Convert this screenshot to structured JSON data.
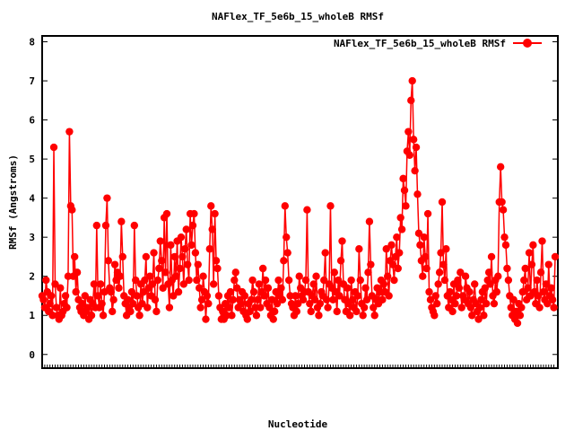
{
  "chart_data": {
    "type": "line",
    "title": "NAFlex_TF_5e6b_15_wholeB RMSf",
    "xlabel": "Nucleotide",
    "ylabel": "RMSf (Angstroms)",
    "ylim": [
      -0.35,
      8.15
    ],
    "yticks": [
      0,
      1,
      2,
      3,
      4,
      5,
      6,
      7,
      8
    ],
    "grid": false,
    "legend_position": "top-right",
    "series": [
      {
        "name": "NAFlex_TF_5e6b_15_wholeB RMSf",
        "color": "#ff0000",
        "values": [
          1.5,
          1.4,
          1.2,
          1.9,
          1.6,
          1.1,
          1.3,
          1.5,
          1.0,
          5.3,
          1.8,
          1.2,
          1.0,
          0.9,
          1.7,
          1.0,
          1.1,
          1.3,
          1.5,
          1.2,
          2.0,
          5.7,
          3.8,
          3.7,
          2.0,
          2.5,
          1.6,
          2.1,
          1.4,
          1.2,
          1.1,
          1.3,
          1.0,
          1.5,
          1.1,
          1.2,
          0.9,
          1.4,
          1.0,
          1.3,
          1.8,
          1.2,
          3.3,
          1.5,
          1.2,
          1.8,
          1.3,
          1.0,
          1.6,
          3.3,
          4.0,
          2.4,
          1.7,
          1.6,
          1.1,
          1.4,
          2.3,
          1.9,
          2.1,
          1.7,
          2.0,
          3.4,
          2.5,
          1.5,
          1.3,
          1.0,
          1.4,
          1.2,
          1.1,
          1.6,
          1.3,
          3.3,
          1.9,
          1.5,
          1.2,
          1.0,
          1.8,
          1.3,
          1.6,
          1.9,
          2.5,
          1.2,
          1.7,
          2.0,
          1.5,
          1.8,
          2.6,
          1.4,
          1.1,
          1.9,
          2.2,
          2.9,
          2.4,
          1.7,
          3.5,
          2.1,
          3.6,
          1.8,
          1.2,
          2.8,
          1.9,
          1.5,
          2.5,
          2.0,
          2.9,
          1.6,
          2.2,
          3.0,
          2.5,
          1.8,
          2.7,
          3.2,
          2.3,
          1.9,
          3.6,
          2.8,
          3.3,
          3.6,
          2.6,
          1.9,
          2.3,
          1.7,
          1.2,
          1.4,
          2.0,
          1.6,
          0.9,
          1.5,
          1.3,
          2.7,
          3.8,
          3.2,
          1.8,
          3.6,
          2.4,
          2.2,
          1.5,
          1.2,
          0.9,
          1.1,
          0.9,
          1.3,
          1.0,
          1.5,
          1.2,
          1.6,
          1.0,
          1.4,
          1.9,
          2.1,
          1.7,
          1.2,
          1.4,
          1.3,
          1.6,
          1.1,
          1.5,
          1.0,
          0.9,
          1.3,
          1.1,
          1.4,
          1.9,
          1.6,
          1.2,
          1.0,
          1.4,
          1.8,
          1.2,
          1.6,
          2.2,
          1.5,
          1.9,
          1.3,
          1.7,
          1.2,
          1.0,
          1.4,
          0.9,
          1.1,
          1.6,
          1.3,
          1.9,
          1.5,
          1.7,
          1.4,
          2.4,
          3.8,
          3.0,
          2.6,
          1.9,
          1.5,
          1.3,
          1.2,
          1.0,
          1.5,
          1.1,
          1.3,
          2.0,
          1.7,
          1.5,
          1.4,
          1.6,
          1.9,
          3.7,
          1.6,
          1.3,
          1.1,
          1.5,
          1.8,
          1.4,
          2.0,
          1.2,
          1.0,
          1.3,
          1.6,
          1.5,
          1.9,
          2.6,
          1.4,
          1.2,
          1.8,
          3.8,
          1.7,
          1.4,
          2.1,
          1.6,
          1.1,
          1.9,
          1.5,
          2.4,
          2.9,
          1.8,
          1.4,
          1.1,
          1.7,
          1.3,
          1.0,
          1.9,
          1.4,
          1.2,
          1.6,
          1.1,
          1.5,
          2.7,
          1.9,
          1.3,
          1.0,
          1.2,
          1.7,
          1.4,
          2.1,
          3.4,
          2.3,
          1.5,
          1.2,
          1.0,
          1.4,
          1.7,
          1.3,
          1.6,
          1.9,
          1.4,
          1.8,
          1.6,
          2.7,
          2.0,
          1.5,
          2.4,
          2.8,
          2.3,
          1.9,
          2.5,
          3.0,
          2.2,
          2.6,
          3.5,
          3.2,
          4.5,
          4.2,
          3.8,
          5.2,
          5.7,
          5.1,
          6.5,
          7.0,
          5.5,
          4.7,
          5.3,
          4.1,
          3.1,
          2.8,
          2.4,
          2.0,
          3.0,
          2.5,
          2.2,
          3.6,
          1.6,
          1.4,
          1.2,
          1.1,
          1.0,
          1.5,
          1.3,
          1.8,
          2.1,
          2.6,
          3.9,
          2.3,
          1.9,
          2.7,
          1.5,
          1.2,
          1.6,
          1.4,
          1.1,
          1.8,
          1.3,
          1.5,
          1.9,
          1.7,
          2.1,
          1.2,
          1.5,
          1.4,
          2.0,
          1.7,
          1.3,
          1.6,
          1.2,
          1.0,
          1.4,
          1.8,
          1.3,
          1.1,
          0.9,
          1.2,
          1.4,
          1.6,
          1.0,
          1.7,
          1.3,
          1.9,
          2.1,
          1.8,
          2.5,
          1.5,
          1.3,
          1.9,
          1.6,
          2.0,
          3.9,
          4.8,
          3.9,
          3.7,
          3.0,
          2.8,
          2.2,
          1.9,
          1.5,
          1.2,
          1.0,
          1.4,
          0.9,
          1.1,
          0.8,
          1.3,
          1.0,
          1.2,
          1.6,
          1.9,
          2.2,
          1.4,
          1.7,
          2.6,
          1.5,
          2.3,
          2.8,
          1.6,
          1.3,
          1.9,
          1.5,
          1.2,
          2.1,
          2.9,
          1.6,
          1.4,
          1.8,
          1.3,
          2.3,
          1.5,
          1.7,
          1.4,
          1.2,
          2.5
        ]
      }
    ]
  }
}
